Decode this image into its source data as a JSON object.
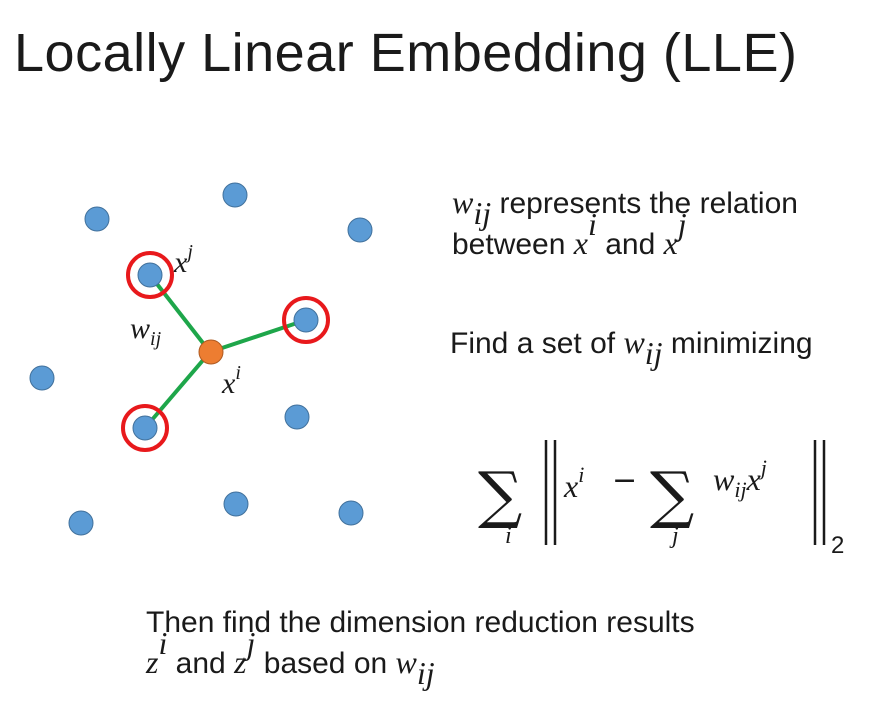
{
  "title": "Locally Linear Embedding (LLE)",
  "colors": {
    "point_blue": "#5b9bd5",
    "center_orange": "#ed7d31",
    "edge_green": "#1ea64a",
    "neighbor_ring_red": "#e8191c"
  },
  "diagram": {
    "label_xj": {
      "base": "x",
      "sup": "j"
    },
    "label_xi": {
      "base": "x",
      "sup": "i"
    },
    "label_wij": {
      "base": "w",
      "sub": "ij"
    }
  },
  "relation_text": {
    "w": "w",
    "w_sub": "ij",
    "part1": " represents the relation",
    "part2": "between ",
    "xi": "x",
    "xi_sup": "i",
    "and": " and ",
    "xj": "x",
    "xj_sup": "j"
  },
  "find_text": {
    "before": "Find a set of ",
    "w": "w",
    "w_sub": "ij",
    "after": " minimizing"
  },
  "formula": {
    "sum_symbol": "∑",
    "outer_index": "i",
    "inner_index": "j",
    "x": "x",
    "x_sup": "i",
    "minus": "−",
    "w": "w",
    "w_sub": "ij",
    "xj": "x",
    "xj_sup": "j",
    "norm_subscript": "2"
  },
  "then_text": {
    "line1": "Then find the dimension reduction results",
    "zi": "z",
    "zi_sup": "i",
    "and": " and ",
    "zj": "z",
    "zj_sup": "j",
    "based": " based on ",
    "w": "w",
    "w_sub": "ij"
  }
}
